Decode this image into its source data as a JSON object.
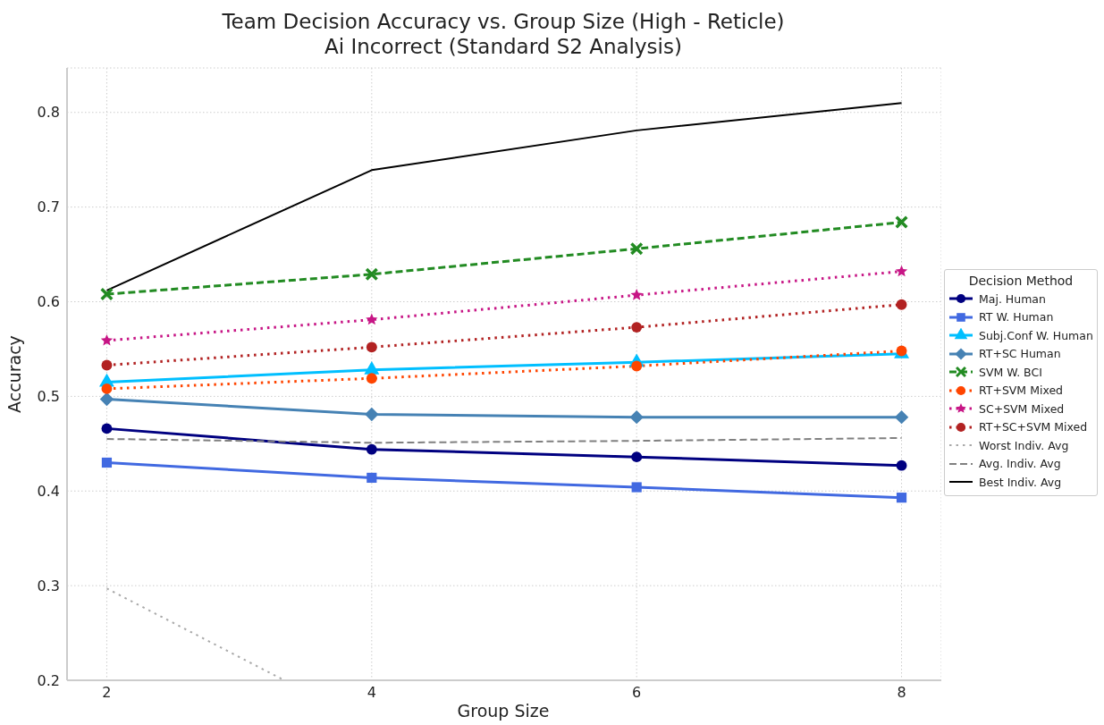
{
  "chart_data": {
    "type": "line",
    "title": "Team Decision Accuracy vs. Group Size (High - Reticle)\nAi Incorrect (Standard S2 Analysis)",
    "xlabel": "Group Size",
    "ylabel": "Accuracy",
    "legend_title": "Decision Method",
    "legend": "right",
    "grid": true,
    "x": [
      2,
      4,
      6,
      8
    ],
    "xlim": [
      1.7,
      8.3
    ],
    "xticks": [
      2,
      4,
      6,
      8
    ],
    "ylim": [
      0.2,
      0.847
    ],
    "yticks": [
      0.2,
      0.3,
      0.4,
      0.5,
      0.6,
      0.7,
      0.8
    ],
    "series": [
      {
        "name": "Maj. Human",
        "color": "#000080",
        "marker": "circle",
        "line_style": "solid",
        "values": [
          0.466,
          0.444,
          0.436,
          0.427
        ]
      },
      {
        "name": "RT W. Human",
        "color": "#4169e1",
        "marker": "square",
        "line_style": "solid",
        "values": [
          0.43,
          0.414,
          0.404,
          0.393
        ]
      },
      {
        "name": "Subj.Conf W. Human",
        "color": "#00bfff",
        "marker": "triangle",
        "line_style": "solid",
        "values": [
          0.515,
          0.528,
          0.536,
          0.545
        ]
      },
      {
        "name": "RT+SC Human",
        "color": "#4682b4",
        "marker": "diamond",
        "line_style": "solid",
        "values": [
          0.497,
          0.481,
          0.478,
          0.478
        ]
      },
      {
        "name": "SVM W. BCI",
        "color": "#228b22",
        "marker": "cross",
        "line_style": "dashed",
        "values": [
          0.608,
          0.629,
          0.656,
          0.684
        ]
      },
      {
        "name": "RT+SVM Mixed",
        "color": "#ff4500",
        "marker": "circle",
        "line_style": "dotted",
        "values": [
          0.508,
          0.519,
          0.532,
          0.548
        ]
      },
      {
        "name": "SC+SVM Mixed",
        "color": "#c71585",
        "marker": "star",
        "line_style": "dotted",
        "values": [
          0.559,
          0.581,
          0.607,
          0.632
        ]
      },
      {
        "name": "RT+SC+SVM Mixed",
        "color": "#b22222",
        "marker": "circle",
        "line_style": "dotted",
        "values": [
          0.533,
          0.552,
          0.573,
          0.597
        ]
      },
      {
        "name": "Worst Indiv. Avg",
        "color": "#a9a9a9",
        "marker": "none",
        "line_style": "dotted",
        "x": [
          2,
          3.34
        ],
        "values": [
          0.297,
          0.2
        ]
      },
      {
        "name": "Avg. Indiv. Avg",
        "color": "#808080",
        "marker": "none",
        "line_style": "dashed",
        "values": [
          0.455,
          0.451,
          0.453,
          0.456
        ]
      },
      {
        "name": "Best Indiv. Avg",
        "color": "#000000",
        "marker": "none",
        "line_style": "solid",
        "values": [
          0.612,
          0.739,
          0.781,
          0.81
        ]
      }
    ]
  }
}
